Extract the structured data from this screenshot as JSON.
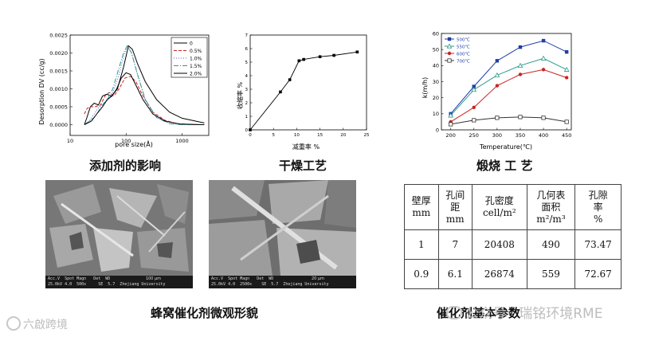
{
  "chart_data": [
    {
      "type": "line",
      "title": "",
      "xlabel": "pore size(Å)",
      "ylabel": "Desorption DV (cc/g)",
      "xscale": "log",
      "xlim": [
        10,
        3000
      ],
      "ylim": [
        -0.0003,
        0.0025
      ],
      "x_ticks": [
        "10",
        "100",
        "1000"
      ],
      "y_ticks": [
        "0.0000",
        "0.0005",
        "0.0010",
        "0.0015",
        "0.0020",
        "0.0025"
      ],
      "legend_position": "top-right",
      "series": [
        {
          "name": "0",
          "color": "#000000",
          "dash": "solid",
          "points": [
            [
              18,
              0
            ],
            [
              20,
              0.0002
            ],
            [
              23,
              0.0005
            ],
            [
              27,
              0.0006
            ],
            [
              32,
              0.00055
            ],
            [
              38,
              0.0008
            ],
            [
              45,
              0.00085
            ],
            [
              55,
              0.0008
            ],
            [
              70,
              0.001
            ],
            [
              90,
              0.0016
            ],
            [
              110,
              0.0022
            ],
            [
              130,
              0.0021
            ],
            [
              160,
              0.0017
            ],
            [
              220,
              0.0012
            ],
            [
              350,
              0.0007
            ],
            [
              600,
              0.00035
            ],
            [
              1000,
              0.00018
            ],
            [
              2000,
              8e-05
            ],
            [
              2500,
              5e-05
            ]
          ]
        },
        {
          "name": "0.5%",
          "color": "#cc2222",
          "dash": "4,2",
          "points": [
            [
              18,
              0.0003
            ],
            [
              20,
              0.00045
            ],
            [
              23,
              0.0005
            ],
            [
              28,
              0.0005
            ],
            [
              35,
              0.00055
            ],
            [
              42,
              0.0008
            ],
            [
              50,
              0.0009
            ],
            [
              60,
              0.0008
            ],
            [
              75,
              0.001
            ],
            [
              95,
              0.0013
            ],
            [
              120,
              0.00135
            ],
            [
              150,
              0.0012
            ],
            [
              200,
              0.0008
            ],
            [
              300,
              0.00035
            ],
            [
              500,
              0.00012
            ],
            [
              800,
              3e-05
            ],
            [
              1500,
              0.0
            ],
            [
              2500,
              0.0
            ]
          ]
        },
        {
          "name": "1.0%",
          "color": "#5b5bd6",
          "dash": "1,2",
          "points": [
            [
              18,
              0
            ],
            [
              22,
              0.0001
            ],
            [
              27,
              0.0003
            ],
            [
              33,
              0.0005
            ],
            [
              40,
              0.0006
            ],
            [
              48,
              0.0007
            ],
            [
              58,
              0.0009
            ],
            [
              72,
              0.0013
            ],
            [
              90,
              0.0019
            ],
            [
              105,
              0.0022
            ],
            [
              125,
              0.002
            ],
            [
              160,
              0.0014
            ],
            [
              220,
              0.0007
            ],
            [
              350,
              0.0002
            ],
            [
              600,
              3e-05
            ],
            [
              1000,
              0.0
            ],
            [
              2500,
              0.0
            ]
          ]
        },
        {
          "name": "1.5%",
          "color": "#2a9a8a",
          "dash": "6,2,1,2",
          "points": [
            [
              18,
              0
            ],
            [
              22,
              0.0001
            ],
            [
              27,
              0.0002
            ],
            [
              33,
              0.0004
            ],
            [
              40,
              0.0006
            ],
            [
              48,
              0.00075
            ],
            [
              58,
              0.001
            ],
            [
              72,
              0.0015
            ],
            [
              90,
              0.002
            ],
            [
              105,
              0.0022
            ],
            [
              125,
              0.002
            ],
            [
              160,
              0.0014
            ],
            [
              220,
              0.0007
            ],
            [
              350,
              0.0002
            ],
            [
              600,
              3e-05
            ],
            [
              1000,
              0.0
            ],
            [
              2500,
              0.0
            ]
          ]
        },
        {
          "name": "2.0%",
          "color": "#000000",
          "dash": "solid",
          "points": [
            [
              18,
              0
            ],
            [
              24,
              0.0001
            ],
            [
              30,
              0.0003
            ],
            [
              38,
              0.0005
            ],
            [
              46,
              0.0007
            ],
            [
              56,
              0.0008
            ],
            [
              68,
              0.001
            ],
            [
              82,
              0.0013
            ],
            [
              100,
              0.00145
            ],
            [
              120,
              0.0014
            ],
            [
              150,
              0.0011
            ],
            [
              200,
              0.0007
            ],
            [
              300,
              0.0003
            ],
            [
              500,
              0.0001
            ],
            [
              900,
              2e-05
            ],
            [
              2500,
              0.0
            ]
          ]
        }
      ]
    },
    {
      "type": "line",
      "title": "",
      "xlabel": "减重率 %",
      "ylabel": "收缩率 %",
      "xlim": [
        0,
        25
      ],
      "ylim": [
        0,
        7
      ],
      "x_ticks": [
        "0",
        "5",
        "10",
        "15",
        "20",
        "25"
      ],
      "y_ticks": [
        "0",
        "1",
        "2",
        "3",
        "4",
        "5",
        "6",
        "7"
      ],
      "series": [
        {
          "name": "",
          "color": "#000000",
          "x": [
            0,
            6.5,
            8.5,
            10.5,
            11.5,
            15,
            18,
            23
          ],
          "y": [
            0,
            2.8,
            3.7,
            5.1,
            5.2,
            5.4,
            5.5,
            5.75
          ]
        }
      ]
    },
    {
      "type": "line",
      "title": "",
      "xlabel": "Temperature(℃)",
      "ylabel": "k(m/h)",
      "xlim": [
        180,
        460
      ],
      "ylim": [
        0,
        60
      ],
      "x_ticks": [
        "200",
        "250",
        "300",
        "350",
        "400",
        "450"
      ],
      "y_ticks": [
        "0",
        "10",
        "20",
        "30",
        "40",
        "50",
        "60"
      ],
      "legend_position": "top-left",
      "series": [
        {
          "name": "500℃",
          "color": "#1f3ea8",
          "marker": "square-filled",
          "x": [
            200,
            250,
            300,
            350,
            400,
            450
          ],
          "y": [
            10,
            27,
            43,
            51.5,
            55.5,
            48.5
          ]
        },
        {
          "name": "550℃",
          "color": "#2a9a8a",
          "marker": "triangle-open",
          "x": [
            200,
            250,
            300,
            350,
            400,
            450
          ],
          "y": [
            9,
            25,
            34,
            40,
            44.5,
            37.5
          ]
        },
        {
          "name": "600℃",
          "color": "#cc2222",
          "marker": "circle-filled",
          "x": [
            200,
            250,
            300,
            350,
            400,
            450
          ],
          "y": [
            5,
            14,
            27.5,
            34.5,
            37.5,
            32.5
          ]
        },
        {
          "name": "700℃",
          "color": "#333333",
          "marker": "square-open",
          "x": [
            200,
            250,
            300,
            350,
            400,
            450
          ],
          "y": [
            3.5,
            6,
            7.5,
            8,
            7.5,
            5
          ]
        }
      ]
    }
  ],
  "captions": {
    "additive": "添加剂的影响",
    "drying": "干燥工艺",
    "calcination": "煅烧 工 艺",
    "micro": "蜂窝催化剂微观形貌",
    "params": "催化剂基本参数"
  },
  "sem_images": [
    {
      "info": "Acc.V  Spot Magn   Det  WD\n25.0kV 4.0  500x     SE  5.7  Zhejiang University",
      "scale": "100 μm"
    },
    {
      "info": "Acc.V  Spot Magn   Det  WD\n25.0kV 4.0  2500x    SE  5.7  Zhejiang University",
      "scale": "20 μm"
    }
  ],
  "table": {
    "headers": [
      "壁厚\nmm",
      "孔间\n距\nmm",
      "孔密度\ncell/m²",
      "几何表\n面积\nm²/m³",
      "孔隙\n率\n%"
    ],
    "rows": [
      [
        "1",
        "7",
        "20408",
        "490",
        "73.47"
      ],
      [
        "0.9",
        "6.1",
        "26874",
        "559",
        "72.67"
      ]
    ]
  },
  "watermarks": {
    "left": "六啟跨境",
    "right": "公众号 · 瑞铭环境RME"
  }
}
